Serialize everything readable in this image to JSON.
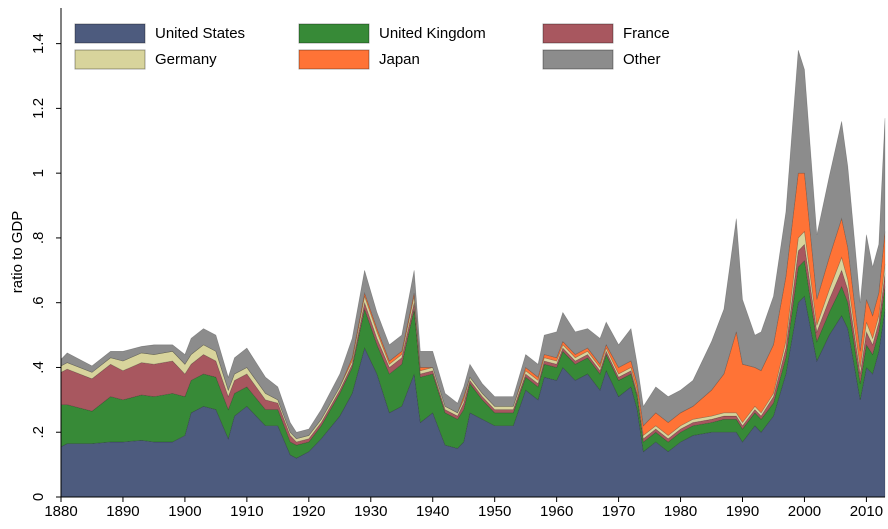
{
  "chart_data": {
    "type": "stacked_area",
    "y_label": "ratio to GDP",
    "xlim": [
      1880,
      2013
    ],
    "xticks": [
      1880,
      1890,
      1900,
      1910,
      1920,
      1930,
      1940,
      1950,
      1960,
      1970,
      1980,
      1990,
      2000,
      2010
    ],
    "ylim": [
      0,
      1.51
    ],
    "yticks": [
      0,
      {
        "value": 0.2,
        "label": ".2"
      },
      {
        "value": 0.4,
        "label": ".4"
      },
      {
        "value": 0.6,
        "label": ".6"
      },
      {
        "value": 0.8,
        "label": ".8"
      },
      1,
      1.2,
      1.4
    ],
    "legend": "top",
    "x": [
      1880,
      1881,
      1885,
      1888,
      1890,
      1893,
      1895,
      1898,
      1900,
      1901,
      1903,
      1905,
      1907,
      1908,
      1910,
      1913,
      1915,
      1917,
      1918,
      1920,
      1922,
      1925,
      1927,
      1929,
      1931,
      1933,
      1935,
      1937,
      1938,
      1940,
      1942,
      1944,
      1945,
      1946,
      1948,
      1950,
      1953,
      1955,
      1957,
      1958,
      1960,
      1961,
      1963,
      1965,
      1967,
      1968,
      1970,
      1972,
      1973,
      1974,
      1976,
      1978,
      1980,
      1982,
      1985,
      1987,
      1989,
      1990,
      1992,
      1993,
      1995,
      1997,
      1999,
      2000,
      2002,
      2004,
      2006,
      2007,
      2009,
      2010,
      2011,
      2012,
      2013
    ],
    "series": [
      {
        "name": "United States",
        "color": "#4d5b7e",
        "values": [
          0.155,
          0.165,
          0.165,
          0.17,
          0.17,
          0.175,
          0.17,
          0.17,
          0.19,
          0.26,
          0.28,
          0.27,
          0.18,
          0.25,
          0.28,
          0.22,
          0.22,
          0.13,
          0.12,
          0.14,
          0.18,
          0.25,
          0.32,
          0.46,
          0.38,
          0.26,
          0.28,
          0.38,
          0.23,
          0.26,
          0.16,
          0.15,
          0.17,
          0.26,
          0.24,
          0.22,
          0.22,
          0.33,
          0.3,
          0.37,
          0.36,
          0.4,
          0.36,
          0.38,
          0.33,
          0.39,
          0.31,
          0.34,
          0.27,
          0.14,
          0.17,
          0.14,
          0.17,
          0.19,
          0.2,
          0.2,
          0.2,
          0.17,
          0.22,
          0.2,
          0.25,
          0.38,
          0.6,
          0.62,
          0.42,
          0.5,
          0.56,
          0.52,
          0.3,
          0.4,
          0.38,
          0.45,
          0.58
        ]
      },
      {
        "name": "United Kingdom",
        "color": "#378a37",
        "values": [
          0.13,
          0.12,
          0.1,
          0.14,
          0.13,
          0.14,
          0.14,
          0.15,
          0.12,
          0.1,
          0.1,
          0.1,
          0.09,
          0.07,
          0.06,
          0.05,
          0.05,
          0.04,
          0.04,
          0.03,
          0.04,
          0.07,
          0.08,
          0.12,
          0.09,
          0.12,
          0.13,
          0.2,
          0.14,
          0.12,
          0.1,
          0.09,
          0.1,
          0.09,
          0.06,
          0.04,
          0.04,
          0.04,
          0.04,
          0.04,
          0.04,
          0.05,
          0.05,
          0.05,
          0.05,
          0.05,
          0.05,
          0.04,
          0.04,
          0.03,
          0.03,
          0.03,
          0.03,
          0.03,
          0.03,
          0.04,
          0.04,
          0.04,
          0.04,
          0.04,
          0.04,
          0.05,
          0.11,
          0.11,
          0.06,
          0.07,
          0.09,
          0.08,
          0.05,
          0.07,
          0.06,
          0.06,
          0.07
        ]
      },
      {
        "name": "France",
        "color": "#a8575f",
        "values": [
          0.1,
          0.11,
          0.1,
          0.1,
          0.09,
          0.1,
          0.1,
          0.1,
          0.07,
          0.05,
          0.06,
          0.05,
          0.04,
          0.04,
          0.04,
          0.03,
          0.02,
          0.02,
          0.01,
          0.01,
          0.01,
          0.01,
          0.01,
          0.02,
          0.02,
          0.02,
          0.02,
          0.02,
          0.01,
          0.01,
          0.01,
          0.01,
          0.02,
          0.01,
          0.01,
          0.01,
          0.01,
          0.01,
          0.01,
          0.01,
          0.01,
          0.01,
          0.01,
          0.01,
          0.01,
          0.01,
          0.01,
          0.01,
          0.01,
          0.01,
          0.01,
          0.01,
          0.01,
          0.01,
          0.01,
          0.01,
          0.01,
          0.01,
          0.01,
          0.01,
          0.02,
          0.03,
          0.05,
          0.05,
          0.03,
          0.04,
          0.05,
          0.04,
          0.03,
          0.04,
          0.03,
          0.03,
          0.04
        ]
      },
      {
        "name": "Germany",
        "color": "#d8d49c",
        "values": [
          0.02,
          0.02,
          0.02,
          0.02,
          0.03,
          0.03,
          0.03,
          0.03,
          0.03,
          0.03,
          0.03,
          0.03,
          0.02,
          0.02,
          0.02,
          0.02,
          0.01,
          0.01,
          0.01,
          0.01,
          0.01,
          0.01,
          0.01,
          0.02,
          0.02,
          0.01,
          0.01,
          0.02,
          0.01,
          0.01,
          0.01,
          0.01,
          0.01,
          0.01,
          0.01,
          0.01,
          0.01,
          0.01,
          0.01,
          0.01,
          0.01,
          0.01,
          0.01,
          0.01,
          0.01,
          0.01,
          0.01,
          0.01,
          0.01,
          0.01,
          0.01,
          0.01,
          0.01,
          0.01,
          0.01,
          0.01,
          0.01,
          0.01,
          0.01,
          0.01,
          0.01,
          0.02,
          0.04,
          0.04,
          0.02,
          0.03,
          0.04,
          0.03,
          0.02,
          0.03,
          0.02,
          0.02,
          0.03
        ]
      },
      {
        "name": "Japan",
        "color": "#ff7336",
        "values": [
          0,
          0,
          0,
          0,
          0,
          0,
          0,
          0,
          0,
          0,
          0,
          0,
          0,
          0,
          0,
          0,
          0,
          0,
          0,
          0,
          0,
          0,
          0.01,
          0.01,
          0.01,
          0.01,
          0.01,
          0.01,
          0.01,
          0,
          0,
          0,
          0.01,
          0,
          0,
          0,
          0,
          0.01,
          0.01,
          0.01,
          0.01,
          0.01,
          0.01,
          0.01,
          0.01,
          0.01,
          0.02,
          0.02,
          0.02,
          0.03,
          0.04,
          0.04,
          0.04,
          0.04,
          0.08,
          0.12,
          0.25,
          0.18,
          0.12,
          0.13,
          0.15,
          0.2,
          0.2,
          0.18,
          0.08,
          0.1,
          0.12,
          0.1,
          0.05,
          0.07,
          0.07,
          0.07,
          0.1
        ]
      },
      {
        "name": "Other",
        "color": "#8c8c8c",
        "values": [
          0.02,
          0.03,
          0.02,
          0.02,
          0.03,
          0.02,
          0.03,
          0.02,
          0.03,
          0.05,
          0.05,
          0.05,
          0.04,
          0.05,
          0.06,
          0.05,
          0.04,
          0.03,
          0.02,
          0.02,
          0.03,
          0.04,
          0.06,
          0.07,
          0.05,
          0.05,
          0.05,
          0.07,
          0.05,
          0.05,
          0.04,
          0.03,
          0.03,
          0.04,
          0.03,
          0.03,
          0.03,
          0.04,
          0.04,
          0.06,
          0.08,
          0.09,
          0.07,
          0.06,
          0.08,
          0.07,
          0.07,
          0.1,
          0.06,
          0.06,
          0.08,
          0.08,
          0.07,
          0.08,
          0.15,
          0.2,
          0.35,
          0.2,
          0.1,
          0.12,
          0.15,
          0.2,
          0.38,
          0.32,
          0.2,
          0.25,
          0.3,
          0.25,
          0.15,
          0.2,
          0.15,
          0.15,
          0.35
        ]
      }
    ]
  }
}
